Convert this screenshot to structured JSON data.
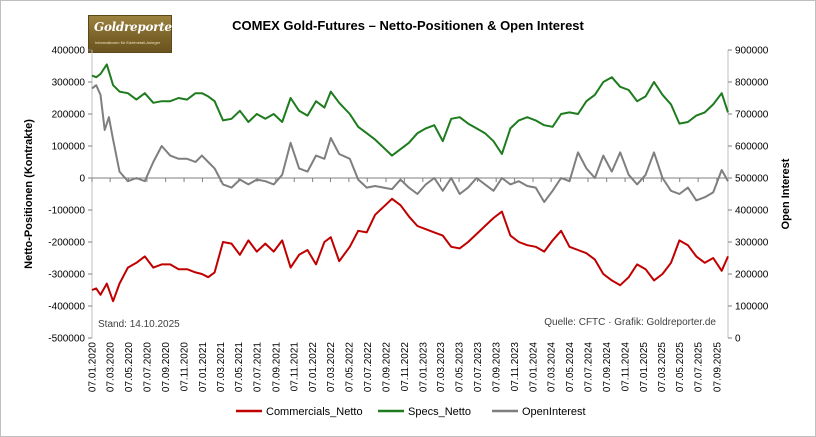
{
  "chart_data": {
    "type": "line",
    "title": "COMEX Gold-Futures – Netto-Positionen & Open Interest",
    "ylabel_left": "Netto-Positionen (Kontrakte)",
    "ylabel_right": "Open Interest",
    "ylim_left": [
      -500000,
      400000
    ],
    "ylim_right": [
      0,
      900000
    ],
    "yticks_left": [
      "400000",
      "300000",
      "200000",
      "100000",
      "0",
      "-100000",
      "-200000",
      "-300000",
      "-400000",
      "-500000"
    ],
    "yticks_right": [
      "900000",
      "800000",
      "700000",
      "600000",
      "500000",
      "400000",
      "300000",
      "200000",
      "100000",
      "0"
    ],
    "xticks": [
      "07.01.2020",
      "07.03.2020",
      "07.05.2020",
      "07.07.2020",
      "07.09.2020",
      "07.11.2020",
      "07.01.2021",
      "07.03.2021",
      "07.05.2021",
      "07.07.2021",
      "07.09.2021",
      "07.11.2021",
      "07.01.2022",
      "07.03.2022",
      "07.05.2022",
      "07.07.2022",
      "07.09.2022",
      "07.11.2022",
      "07.01.2023",
      "07.03.2023",
      "07.05.2023",
      "07.07.2023",
      "07.09.2023",
      "07.11.2023",
      "07.01.2024",
      "07.03.2024",
      "07.05.2024",
      "07.07.2024",
      "07.09.2024",
      "07.11.2024",
      "07.01.2025",
      "07.03.2025",
      "07.05.2025",
      "07.07.2025",
      "07.09.2025"
    ],
    "legend_position": "bottom",
    "grid": false,
    "annotation_left": "Stand: 14.10.2025",
    "annotation_right": "Quelle: CFTC · Grafik: Goldreporter.de",
    "logo": {
      "brand": "Goldreporter",
      "tagline": "Informationen für Edelmetall-Anleger"
    },
    "series": [
      {
        "name": "Commercials_Netto",
        "axis": "left",
        "color": "#c00000",
        "points": [
          [
            "2020-01-07",
            -350000
          ],
          [
            "2020-01-21",
            -345000
          ],
          [
            "2020-02-04",
            -365000
          ],
          [
            "2020-02-25",
            -330000
          ],
          [
            "2020-03-17",
            -385000
          ],
          [
            "2020-04-07",
            -330000
          ],
          [
            "2020-05-05",
            -280000
          ],
          [
            "2020-06-02",
            -265000
          ],
          [
            "2020-06-30",
            -245000
          ],
          [
            "2020-07-28",
            -280000
          ],
          [
            "2020-08-25",
            -270000
          ],
          [
            "2020-09-22",
            -270000
          ],
          [
            "2020-10-20",
            -285000
          ],
          [
            "2020-11-17",
            -285000
          ],
          [
            "2020-12-15",
            -295000
          ],
          [
            "2021-01-05",
            -300000
          ],
          [
            "2021-01-26",
            -310000
          ],
          [
            "2021-02-16",
            -295000
          ],
          [
            "2021-03-16",
            -200000
          ],
          [
            "2021-04-13",
            -205000
          ],
          [
            "2021-05-11",
            -240000
          ],
          [
            "2021-06-08",
            -195000
          ],
          [
            "2021-07-06",
            -230000
          ],
          [
            "2021-08-03",
            -205000
          ],
          [
            "2021-08-31",
            -230000
          ],
          [
            "2021-09-28",
            -195000
          ],
          [
            "2021-10-26",
            -280000
          ],
          [
            "2021-11-23",
            -240000
          ],
          [
            "2021-12-21",
            -225000
          ],
          [
            "2022-01-18",
            -270000
          ],
          [
            "2022-02-15",
            -200000
          ],
          [
            "2022-03-08",
            -185000
          ],
          [
            "2022-04-05",
            -260000
          ],
          [
            "2022-05-10",
            -215000
          ],
          [
            "2022-06-07",
            -165000
          ],
          [
            "2022-07-05",
            -170000
          ],
          [
            "2022-08-02",
            -115000
          ],
          [
            "2022-08-30",
            -90000
          ],
          [
            "2022-09-27",
            -65000
          ],
          [
            "2022-10-25",
            -85000
          ],
          [
            "2022-11-22",
            -120000
          ],
          [
            "2022-12-20",
            -150000
          ],
          [
            "2023-01-17",
            -160000
          ],
          [
            "2023-02-14",
            -170000
          ],
          [
            "2023-03-14",
            -180000
          ],
          [
            "2023-04-11",
            -215000
          ],
          [
            "2023-05-09",
            -220000
          ],
          [
            "2023-06-06",
            -200000
          ],
          [
            "2023-07-04",
            -175000
          ],
          [
            "2023-08-01",
            -150000
          ],
          [
            "2023-08-29",
            -125000
          ],
          [
            "2023-09-26",
            -105000
          ],
          [
            "2023-10-24",
            -180000
          ],
          [
            "2023-11-21",
            -200000
          ],
          [
            "2023-12-19",
            -210000
          ],
          [
            "2024-01-16",
            -215000
          ],
          [
            "2024-02-13",
            -230000
          ],
          [
            "2024-03-12",
            -195000
          ],
          [
            "2024-04-09",
            -165000
          ],
          [
            "2024-05-07",
            -215000
          ],
          [
            "2024-06-04",
            -225000
          ],
          [
            "2024-07-02",
            -235000
          ],
          [
            "2024-07-30",
            -255000
          ],
          [
            "2024-08-27",
            -300000
          ],
          [
            "2024-09-24",
            -320000
          ],
          [
            "2024-10-22",
            -335000
          ],
          [
            "2024-11-19",
            -310000
          ],
          [
            "2024-12-17",
            -270000
          ],
          [
            "2025-01-14",
            -285000
          ],
          [
            "2025-02-11",
            -320000
          ],
          [
            "2025-03-11",
            -300000
          ],
          [
            "2025-04-08",
            -265000
          ],
          [
            "2025-05-06",
            -195000
          ],
          [
            "2025-06-03",
            -210000
          ],
          [
            "2025-07-01",
            -245000
          ],
          [
            "2025-07-29",
            -265000
          ],
          [
            "2025-08-26",
            -250000
          ],
          [
            "2025-09-23",
            -290000
          ],
          [
            "2025-10-14",
            -245000
          ]
        ]
      },
      {
        "name": "Specs_Netto",
        "axis": "left",
        "color": "#1e7b1e",
        "points": [
          [
            "2020-01-07",
            320000
          ],
          [
            "2020-01-21",
            315000
          ],
          [
            "2020-02-04",
            325000
          ],
          [
            "2020-02-25",
            355000
          ],
          [
            "2020-03-17",
            290000
          ],
          [
            "2020-04-07",
            270000
          ],
          [
            "2020-05-05",
            265000
          ],
          [
            "2020-06-02",
            245000
          ],
          [
            "2020-06-30",
            265000
          ],
          [
            "2020-07-28",
            235000
          ],
          [
            "2020-08-25",
            240000
          ],
          [
            "2020-09-22",
            240000
          ],
          [
            "2020-10-20",
            250000
          ],
          [
            "2020-11-17",
            245000
          ],
          [
            "2020-12-15",
            265000
          ],
          [
            "2021-01-05",
            265000
          ],
          [
            "2021-01-26",
            255000
          ],
          [
            "2021-02-16",
            240000
          ],
          [
            "2021-03-16",
            180000
          ],
          [
            "2021-04-13",
            185000
          ],
          [
            "2021-05-11",
            210000
          ],
          [
            "2021-06-08",
            175000
          ],
          [
            "2021-07-06",
            200000
          ],
          [
            "2021-08-03",
            185000
          ],
          [
            "2021-08-31",
            200000
          ],
          [
            "2021-09-28",
            175000
          ],
          [
            "2021-10-26",
            250000
          ],
          [
            "2021-11-23",
            210000
          ],
          [
            "2021-12-21",
            195000
          ],
          [
            "2022-01-18",
            240000
          ],
          [
            "2022-02-15",
            220000
          ],
          [
            "2022-03-08",
            270000
          ],
          [
            "2022-04-05",
            235000
          ],
          [
            "2022-05-10",
            200000
          ],
          [
            "2022-06-07",
            160000
          ],
          [
            "2022-07-05",
            140000
          ],
          [
            "2022-08-02",
            120000
          ],
          [
            "2022-08-30",
            95000
          ],
          [
            "2022-09-27",
            70000
          ],
          [
            "2022-10-25",
            90000
          ],
          [
            "2022-11-22",
            110000
          ],
          [
            "2022-12-20",
            140000
          ],
          [
            "2023-01-17",
            155000
          ],
          [
            "2023-02-14",
            165000
          ],
          [
            "2023-03-14",
            115000
          ],
          [
            "2023-04-11",
            185000
          ],
          [
            "2023-05-09",
            190000
          ],
          [
            "2023-06-06",
            170000
          ],
          [
            "2023-07-04",
            155000
          ],
          [
            "2023-08-01",
            140000
          ],
          [
            "2023-08-29",
            115000
          ],
          [
            "2023-09-26",
            75000
          ],
          [
            "2023-10-24",
            155000
          ],
          [
            "2023-11-21",
            180000
          ],
          [
            "2023-12-19",
            190000
          ],
          [
            "2024-01-16",
            180000
          ],
          [
            "2024-02-13",
            165000
          ],
          [
            "2024-03-12",
            160000
          ],
          [
            "2024-04-09",
            200000
          ],
          [
            "2024-05-07",
            205000
          ],
          [
            "2024-06-04",
            200000
          ],
          [
            "2024-07-02",
            240000
          ],
          [
            "2024-07-30",
            260000
          ],
          [
            "2024-08-27",
            300000
          ],
          [
            "2024-09-24",
            315000
          ],
          [
            "2024-10-22",
            285000
          ],
          [
            "2024-11-19",
            275000
          ],
          [
            "2024-12-17",
            240000
          ],
          [
            "2025-01-14",
            255000
          ],
          [
            "2025-02-11",
            300000
          ],
          [
            "2025-03-11",
            260000
          ],
          [
            "2025-04-08",
            230000
          ],
          [
            "2025-05-06",
            170000
          ],
          [
            "2025-06-03",
            175000
          ],
          [
            "2025-07-01",
            195000
          ],
          [
            "2025-07-29",
            205000
          ],
          [
            "2025-08-26",
            230000
          ],
          [
            "2025-09-23",
            265000
          ],
          [
            "2025-10-14",
            205000
          ]
        ]
      },
      {
        "name": "OpenInterest",
        "axis": "right",
        "color": "#7f7f7f",
        "points": [
          [
            "2020-01-07",
            780000
          ],
          [
            "2020-01-21",
            790000
          ],
          [
            "2020-02-04",
            760000
          ],
          [
            "2020-02-18",
            650000
          ],
          [
            "2020-03-03",
            690000
          ],
          [
            "2020-03-17",
            620000
          ],
          [
            "2020-04-07",
            520000
          ],
          [
            "2020-05-05",
            490000
          ],
          [
            "2020-06-02",
            500000
          ],
          [
            "2020-06-30",
            490000
          ],
          [
            "2020-07-28",
            550000
          ],
          [
            "2020-08-25",
            600000
          ],
          [
            "2020-09-22",
            570000
          ],
          [
            "2020-10-20",
            560000
          ],
          [
            "2020-11-17",
            560000
          ],
          [
            "2020-12-15",
            550000
          ],
          [
            "2021-01-05",
            570000
          ],
          [
            "2021-01-26",
            550000
          ],
          [
            "2021-02-16",
            530000
          ],
          [
            "2021-03-16",
            480000
          ],
          [
            "2021-04-13",
            470000
          ],
          [
            "2021-05-11",
            495000
          ],
          [
            "2021-06-08",
            480000
          ],
          [
            "2021-07-06",
            495000
          ],
          [
            "2021-08-03",
            490000
          ],
          [
            "2021-08-31",
            480000
          ],
          [
            "2021-09-28",
            510000
          ],
          [
            "2021-10-26",
            610000
          ],
          [
            "2021-11-23",
            530000
          ],
          [
            "2021-12-21",
            520000
          ],
          [
            "2022-01-18",
            570000
          ],
          [
            "2022-02-15",
            560000
          ],
          [
            "2022-03-08",
            625000
          ],
          [
            "2022-04-05",
            575000
          ],
          [
            "2022-05-10",
            560000
          ],
          [
            "2022-06-07",
            495000
          ],
          [
            "2022-07-05",
            470000
          ],
          [
            "2022-08-02",
            475000
          ],
          [
            "2022-08-30",
            470000
          ],
          [
            "2022-09-27",
            465000
          ],
          [
            "2022-10-25",
            495000
          ],
          [
            "2022-11-22",
            470000
          ],
          [
            "2022-12-20",
            450000
          ],
          [
            "2023-01-17",
            480000
          ],
          [
            "2023-02-14",
            500000
          ],
          [
            "2023-03-14",
            460000
          ],
          [
            "2023-04-11",
            500000
          ],
          [
            "2023-05-09",
            450000
          ],
          [
            "2023-06-06",
            470000
          ],
          [
            "2023-07-04",
            500000
          ],
          [
            "2023-08-01",
            480000
          ],
          [
            "2023-08-29",
            460000
          ],
          [
            "2023-09-26",
            500000
          ],
          [
            "2023-10-24",
            480000
          ],
          [
            "2023-11-21",
            490000
          ],
          [
            "2023-12-19",
            475000
          ],
          [
            "2024-01-16",
            470000
          ],
          [
            "2024-02-13",
            425000
          ],
          [
            "2024-03-12",
            460000
          ],
          [
            "2024-04-09",
            500000
          ],
          [
            "2024-05-07",
            490000
          ],
          [
            "2024-06-04",
            580000
          ],
          [
            "2024-07-02",
            530000
          ],
          [
            "2024-07-30",
            500000
          ],
          [
            "2024-08-27",
            570000
          ],
          [
            "2024-09-24",
            520000
          ],
          [
            "2024-10-22",
            580000
          ],
          [
            "2024-11-19",
            510000
          ],
          [
            "2024-12-17",
            480000
          ],
          [
            "2025-01-14",
            510000
          ],
          [
            "2025-02-11",
            580000
          ],
          [
            "2025-03-11",
            500000
          ],
          [
            "2025-04-08",
            460000
          ],
          [
            "2025-05-06",
            450000
          ],
          [
            "2025-06-03",
            470000
          ],
          [
            "2025-07-01",
            430000
          ],
          [
            "2025-07-29",
            440000
          ],
          [
            "2025-08-26",
            455000
          ],
          [
            "2025-09-23",
            525000
          ],
          [
            "2025-10-14",
            490000
          ]
        ]
      }
    ]
  }
}
